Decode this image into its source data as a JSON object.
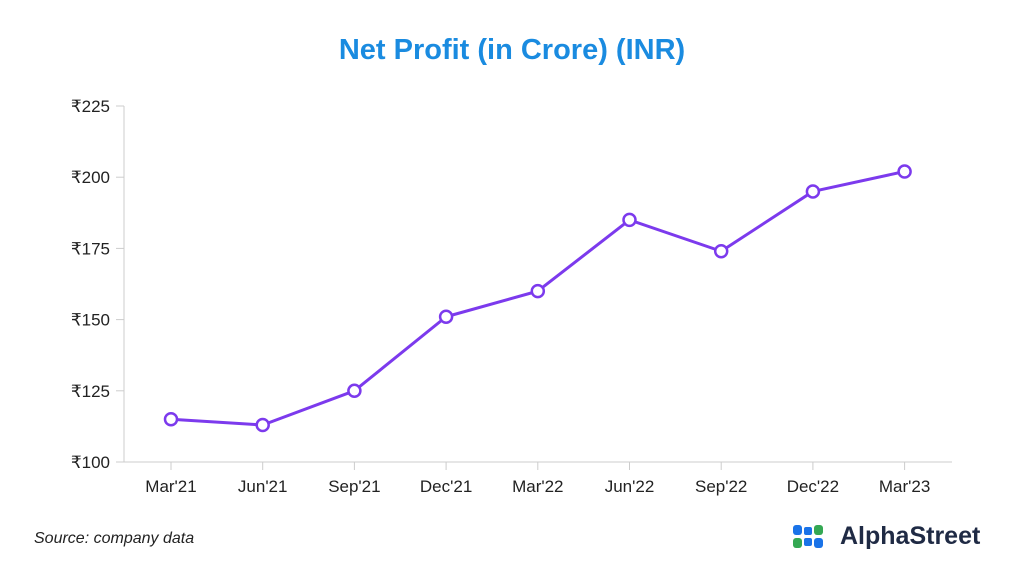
{
  "chart_data": {
    "type": "line",
    "title": "Net Profit (in Crore) (INR)",
    "xlabel": "",
    "ylabel": "",
    "categories": [
      "Mar'21",
      "Jun'21",
      "Sep'21",
      "Dec'21",
      "Mar'22",
      "Jun'22",
      "Sep'22",
      "Dec'22",
      "Mar'23"
    ],
    "series": [
      {
        "values": [
          115,
          113,
          125,
          151,
          160,
          185,
          174,
          195,
          202
        ]
      }
    ],
    "ylim": [
      100,
      225
    ],
    "yticks": [
      100,
      125,
      150,
      175,
      200,
      225
    ],
    "ytick_prefix": "₹",
    "grid": false,
    "colors": {
      "line": "#7c3aed",
      "title": "#1a8be0",
      "axis": "#cccccc"
    }
  },
  "footer": {
    "source": "Source: company data",
    "brand": "AlphaStreet",
    "brand_icon": "alphastreet-logo-icon"
  }
}
